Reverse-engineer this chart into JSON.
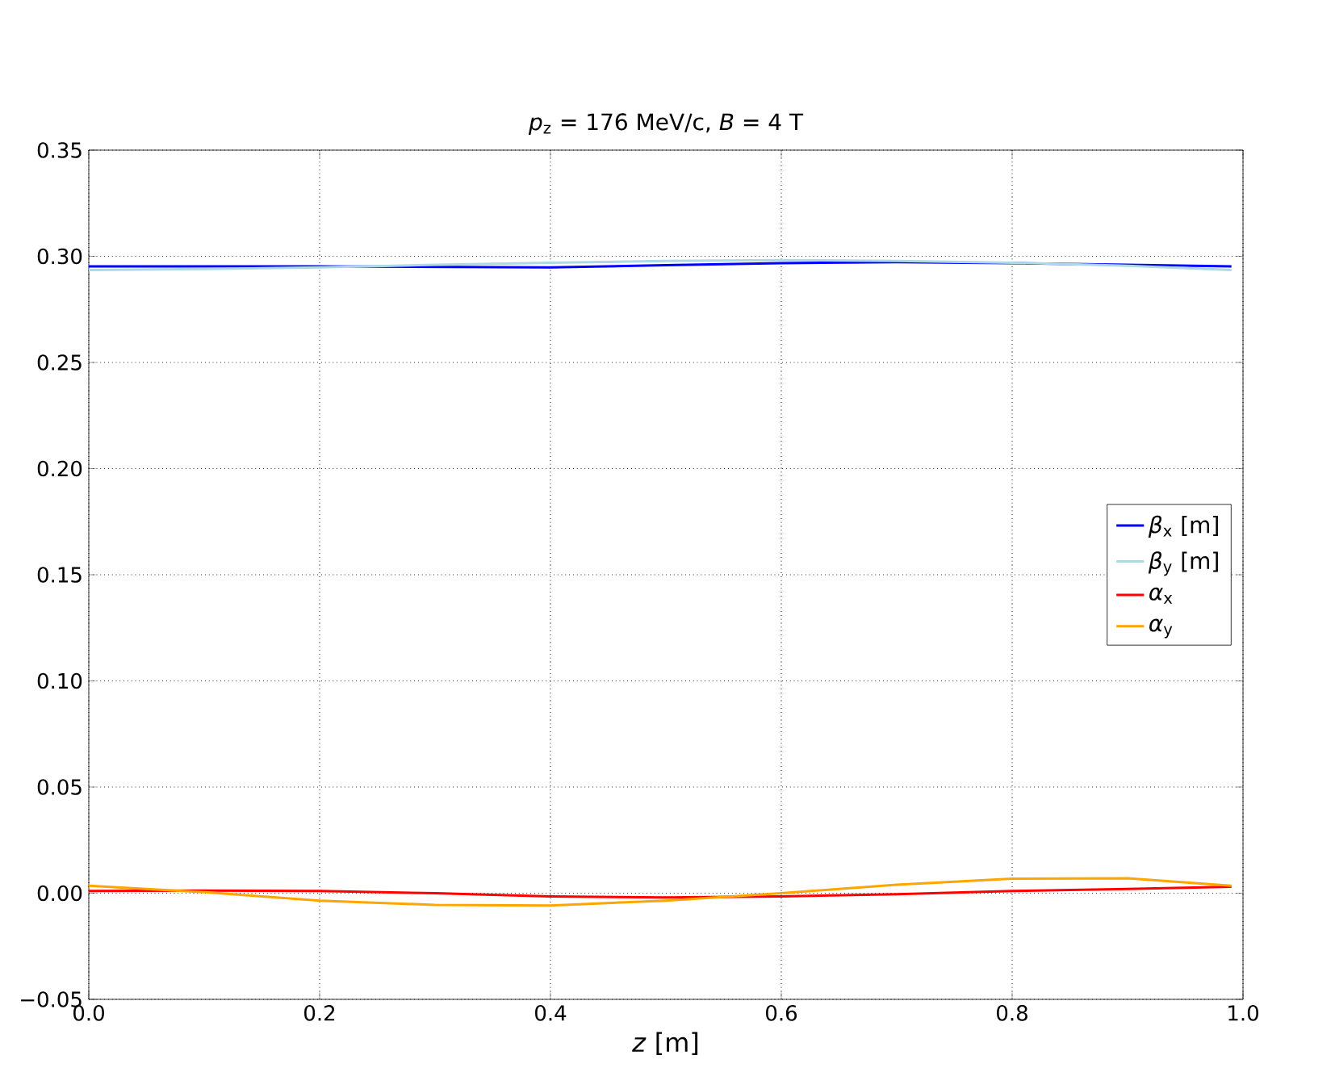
{
  "chart_data": {
    "type": "line",
    "title": "*p*$_{z}$ = 176 MeV/c, *B* = 4 T",
    "xlabel": "*z* [m]",
    "xlim": [
      0,
      1
    ],
    "ylim": [
      -0.05,
      0.35
    ],
    "xticks": [
      {
        "value": 0,
        "label": "0.0"
      },
      {
        "value": 0.2,
        "label": "0.2"
      },
      {
        "value": 0.4,
        "label": "0.4"
      },
      {
        "value": 0.6,
        "label": "0.6"
      },
      {
        "value": 0.8,
        "label": "0.8"
      },
      {
        "value": 1,
        "label": "1.0"
      }
    ],
    "yticks": [
      {
        "value": -0.05,
        "label": "−0.05"
      },
      {
        "value": 0,
        "label": "0.00"
      },
      {
        "value": 0.05,
        "label": "0.05"
      },
      {
        "value": 0.1,
        "label": "0.10"
      },
      {
        "value": 0.15,
        "label": "0.15"
      },
      {
        "value": 0.2,
        "label": "0.20"
      },
      {
        "value": 0.25,
        "label": "0.25"
      },
      {
        "value": 0.3,
        "label": "0.30"
      },
      {
        "value": 0.35,
        "label": "0.35"
      }
    ],
    "grid": true,
    "legend": "right",
    "line_style": "solid",
    "marker": "none",
    "x": [
      0,
      0.1,
      0.2,
      0.3,
      0.4,
      0.5,
      0.6,
      0.7,
      0.8,
      0.9,
      0.99
    ],
    "series": [
      {
        "name": "*β*$_{x}$  [m]",
        "color": "#0000ff",
        "values": [
          0.2952,
          0.2952,
          0.2952,
          0.295,
          0.2948,
          0.2958,
          0.2968,
          0.2972,
          0.2968,
          0.296,
          0.2952
        ]
      },
      {
        "name": "*β*$_{y}$  [m]",
        "color": "#add8e6",
        "values": [
          0.2935,
          0.294,
          0.2948,
          0.296,
          0.297,
          0.2978,
          0.2982,
          0.2978,
          0.297,
          0.2955,
          0.2935
        ]
      },
      {
        "name": "*α*$_{x}$",
        "color": "#ff0000",
        "values": [
          0.001,
          0.0012,
          0.001,
          0.0,
          -0.0015,
          -0.002,
          -0.0015,
          -0.0005,
          0.001,
          0.002,
          0.003
        ]
      },
      {
        "name": "*α*$_{y}$",
        "color": "#ffa500",
        "values": [
          0.0035,
          0.0005,
          -0.0035,
          -0.0055,
          -0.0058,
          -0.0035,
          0.0,
          0.004,
          0.0068,
          0.007,
          0.0035
        ]
      }
    ]
  }
}
